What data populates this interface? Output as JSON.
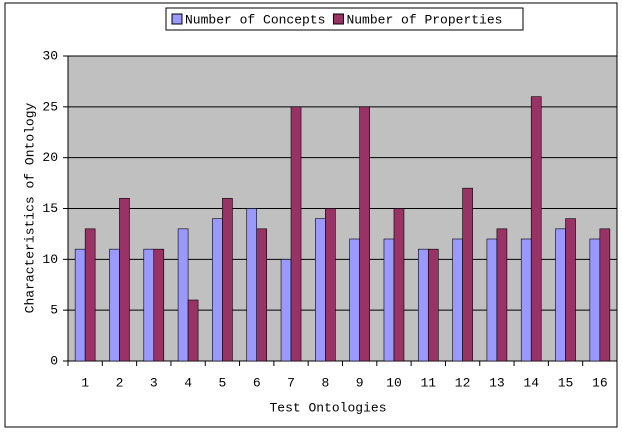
{
  "chart_data": {
    "type": "bar",
    "x_label": "Test Ontologies",
    "y_label": "Characteristics of Ontology",
    "categories": [
      "1",
      "2",
      "3",
      "4",
      "5",
      "6",
      "7",
      "8",
      "9",
      "10",
      "11",
      "12",
      "13",
      "14",
      "15",
      "16"
    ],
    "series": [
      {
        "name": "Number of Concepts",
        "color": "#9999ff",
        "values": [
          11,
          11,
          11,
          13,
          14,
          15,
          10,
          14,
          12,
          12,
          11,
          12,
          12,
          12,
          13,
          12
        ]
      },
      {
        "name": "Number of Properties",
        "color": "#993366",
        "values": [
          13,
          16,
          11,
          6,
          16,
          13,
          25,
          15,
          25,
          15,
          11,
          17,
          13,
          26,
          14,
          13
        ]
      }
    ],
    "ylim": [
      0,
      30
    ],
    "yticks": [
      0,
      5,
      10,
      15,
      20,
      25,
      30
    ],
    "grid": true,
    "legend": "top",
    "plot_background": "#c0c0c0"
  }
}
